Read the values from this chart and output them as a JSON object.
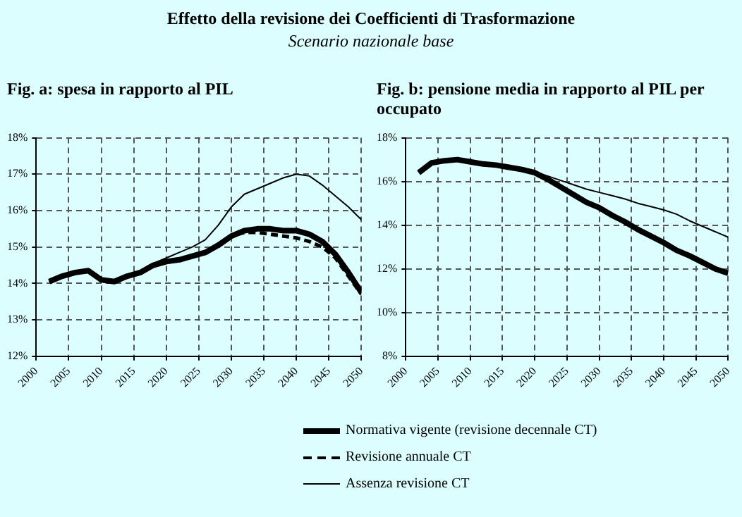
{
  "chart_data": [
    {
      "type": "line",
      "title": "Fig. a: spesa in rapporto al PIL",
      "annotations": [
        "Effetto della revisione dei Coefficienti di Trasformazione",
        "Scenario nazionale base"
      ],
      "x": [
        2002,
        2004,
        2006,
        2008,
        2010,
        2012,
        2014,
        2016,
        2018,
        2020,
        2022,
        2024,
        2026,
        2028,
        2030,
        2032,
        2034,
        2036,
        2038,
        2040,
        2042,
        2044,
        2046,
        2048,
        2050
      ],
      "series": [
        {
          "name": "Normativa vigente (revisione decennale CT)",
          "color": "#000000",
          "line_style": "solid",
          "values": [
            14.05,
            14.2,
            14.3,
            14.35,
            14.1,
            14.05,
            14.2,
            14.3,
            14.5,
            14.6,
            14.65,
            14.75,
            14.85,
            15.05,
            15.3,
            15.45,
            15.5,
            15.5,
            15.45,
            15.45,
            15.35,
            15.15,
            14.8,
            14.3,
            13.75
          ]
        },
        {
          "name": "Revisione annuale CT",
          "color": "#000000",
          "line_style": "dashed",
          "values": [
            14.05,
            14.2,
            14.3,
            14.35,
            14.1,
            14.05,
            14.2,
            14.3,
            14.5,
            14.6,
            14.65,
            14.75,
            14.85,
            15.05,
            15.3,
            15.4,
            15.4,
            15.35,
            15.3,
            15.25,
            15.15,
            15.0,
            14.7,
            14.2,
            13.7
          ]
        },
        {
          "name": "Assenza revisione CT",
          "color": "#000000",
          "line_style": "solid",
          "values": [
            14.05,
            14.2,
            14.3,
            14.35,
            14.1,
            14.05,
            14.2,
            14.3,
            14.55,
            14.7,
            14.85,
            15.0,
            15.2,
            15.6,
            16.1,
            16.45,
            16.6,
            16.75,
            16.9,
            17.0,
            16.95,
            16.7,
            16.4,
            16.1,
            15.75
          ]
        }
      ],
      "xlim": [
        2000,
        2050
      ],
      "xticks": [
        2000,
        2005,
        2010,
        2015,
        2020,
        2025,
        2030,
        2035,
        2040,
        2045,
        2050
      ],
      "ylim": [
        12,
        18
      ],
      "yticks": [
        {
          "value": 12,
          "label": "12%"
        },
        {
          "value": 13,
          "label": "13%"
        },
        {
          "value": 14,
          "label": "14%"
        },
        {
          "value": 15,
          "label": "15%"
        },
        {
          "value": 16,
          "label": "16%"
        },
        {
          "value": 17,
          "label": "17%"
        },
        {
          "value": 18,
          "label": "18%"
        }
      ],
      "grid": true,
      "legend": "bottom",
      "marker": "none"
    },
    {
      "type": "line",
      "title": "Fig. b: pensione media in rapporto al PIL per occupato",
      "x": [
        2002,
        2004,
        2006,
        2008,
        2010,
        2012,
        2014,
        2016,
        2018,
        2020,
        2022,
        2024,
        2026,
        2028,
        2030,
        2032,
        2034,
        2036,
        2038,
        2040,
        2042,
        2044,
        2046,
        2048,
        2050
      ],
      "series": [
        {
          "color": "#000000",
          "line_style": "solid",
          "values": [
            16.4,
            16.85,
            16.95,
            17.0,
            16.9,
            16.8,
            16.75,
            16.65,
            16.55,
            16.4,
            16.1,
            15.75,
            15.4,
            15.05,
            14.8,
            14.45,
            14.15,
            13.8,
            13.5,
            13.2,
            12.85,
            12.6,
            12.3,
            12.0,
            11.8
          ]
        },
        {
          "color": "#000000",
          "line_style": "solid",
          "values": [
            16.4,
            16.85,
            16.95,
            17.0,
            16.9,
            16.8,
            16.75,
            16.65,
            16.55,
            16.45,
            16.25,
            16.05,
            15.85,
            15.65,
            15.5,
            15.35,
            15.2,
            15.0,
            14.85,
            14.7,
            14.5,
            14.2,
            13.95,
            13.7,
            13.45
          ]
        }
      ],
      "xlim": [
        2000,
        2050
      ],
      "xticks": [
        2000,
        2005,
        2010,
        2015,
        2020,
        2025,
        2030,
        2035,
        2040,
        2045,
        2050
      ],
      "ylim": [
        8,
        18
      ],
      "yticks": [
        {
          "value": 8,
          "label": "8%"
        },
        {
          "value": 10,
          "label": "10%"
        },
        {
          "value": 12,
          "label": "12%"
        },
        {
          "value": 14,
          "label": "14%"
        },
        {
          "value": 16,
          "label": "16%"
        },
        {
          "value": 18,
          "label": "18%"
        }
      ],
      "grid": true,
      "legend": false,
      "marker": "none"
    }
  ]
}
